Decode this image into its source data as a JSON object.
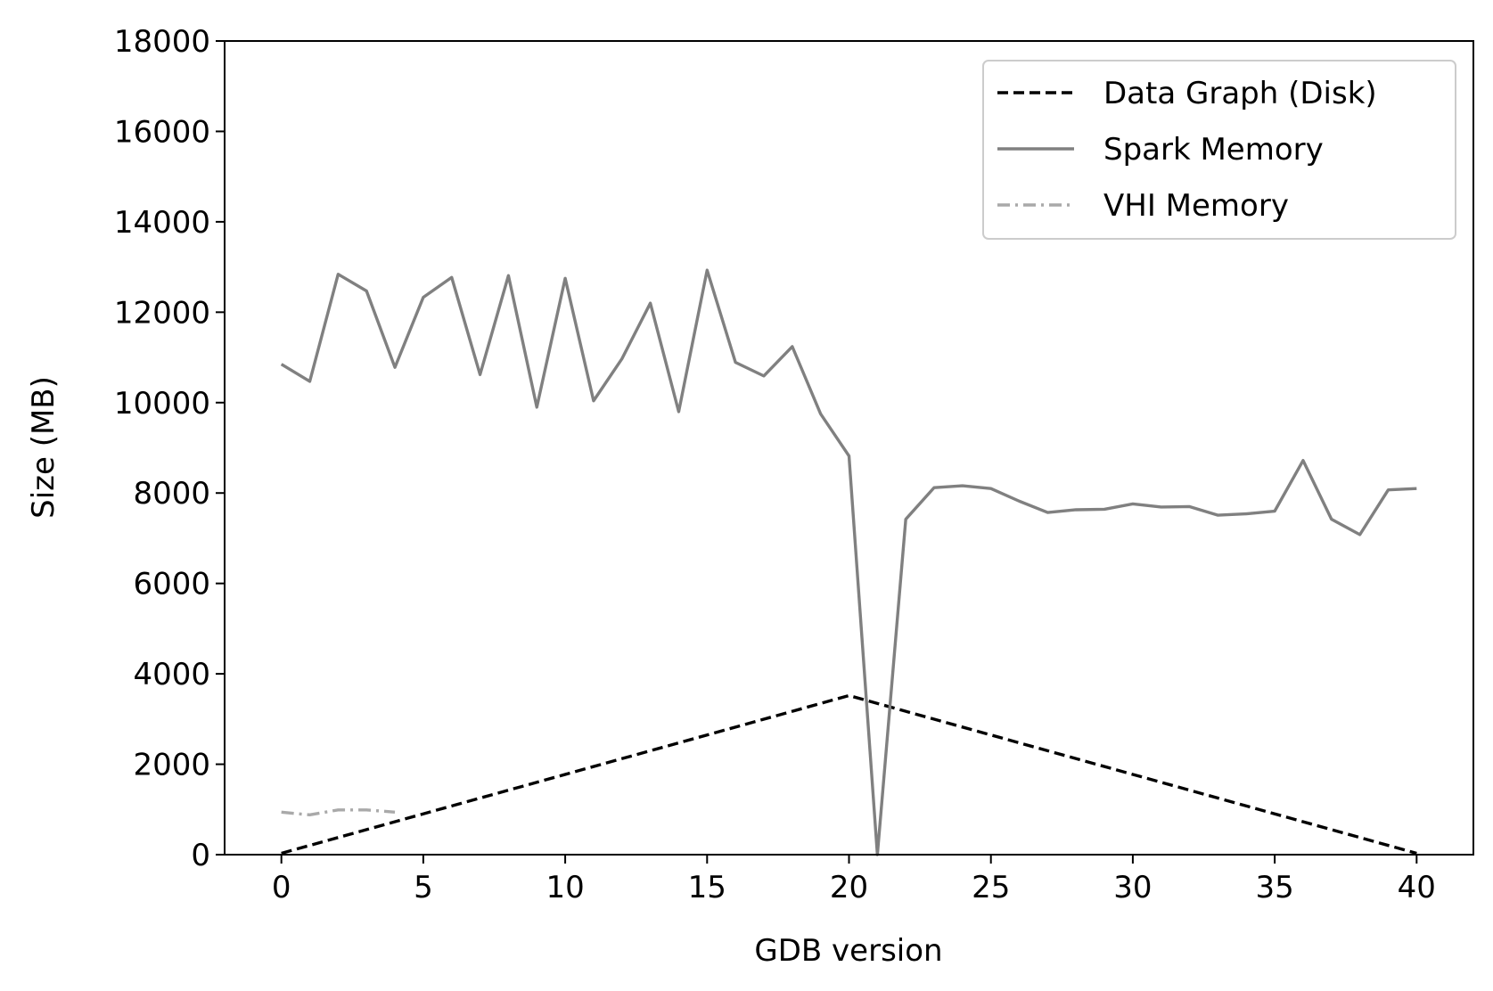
{
  "chart_data": {
    "type": "line",
    "xlabel": "GDB version",
    "ylabel": "Size (MB)",
    "xlim": [
      -2,
      42
    ],
    "ylim": [
      0,
      18000
    ],
    "xticks": [
      "0",
      "5",
      "10",
      "15",
      "20",
      "25",
      "30",
      "35",
      "40"
    ],
    "yticks": [
      "0",
      "2000",
      "4000",
      "6000",
      "8000",
      "10000",
      "12000",
      "14000",
      "16000",
      "18000"
    ],
    "grid": false,
    "legend_position": "top-right",
    "series": [
      {
        "name": "Data Graph (Disk)",
        "color": "#000000",
        "style": "dashed",
        "x": [
          0,
          20,
          40
        ],
        "y": [
          30,
          3520,
          30
        ]
      },
      {
        "name": "Spark Memory",
        "color": "#808080",
        "style": "solid",
        "x": [
          0,
          1,
          2,
          3,
          4,
          5,
          6,
          7,
          8,
          9,
          10,
          11,
          12,
          13,
          14,
          15,
          16,
          17,
          18,
          19,
          20,
          21,
          22,
          23,
          24,
          25,
          26,
          27,
          28,
          29,
          30,
          31,
          32,
          33,
          34,
          35,
          36,
          37,
          38,
          39,
          40
        ],
        "y": [
          10850,
          10470,
          12840,
          12470,
          10780,
          12330,
          12770,
          10620,
          12810,
          9900,
          12750,
          10040,
          10970,
          12200,
          9800,
          12930,
          10890,
          10590,
          11240,
          9750,
          8820,
          0,
          7420,
          8120,
          8160,
          8100,
          7820,
          7570,
          7630,
          7640,
          7760,
          7690,
          7700,
          7510,
          7540,
          7600,
          8720,
          7420,
          7080,
          8070,
          8100
        ]
      },
      {
        "name": "VHI Memory",
        "color": "#a9a9a9",
        "style": "dashdot",
        "x": [
          0,
          1,
          2,
          3,
          4
        ],
        "y": [
          940,
          880,
          990,
          990,
          940
        ]
      }
    ]
  }
}
